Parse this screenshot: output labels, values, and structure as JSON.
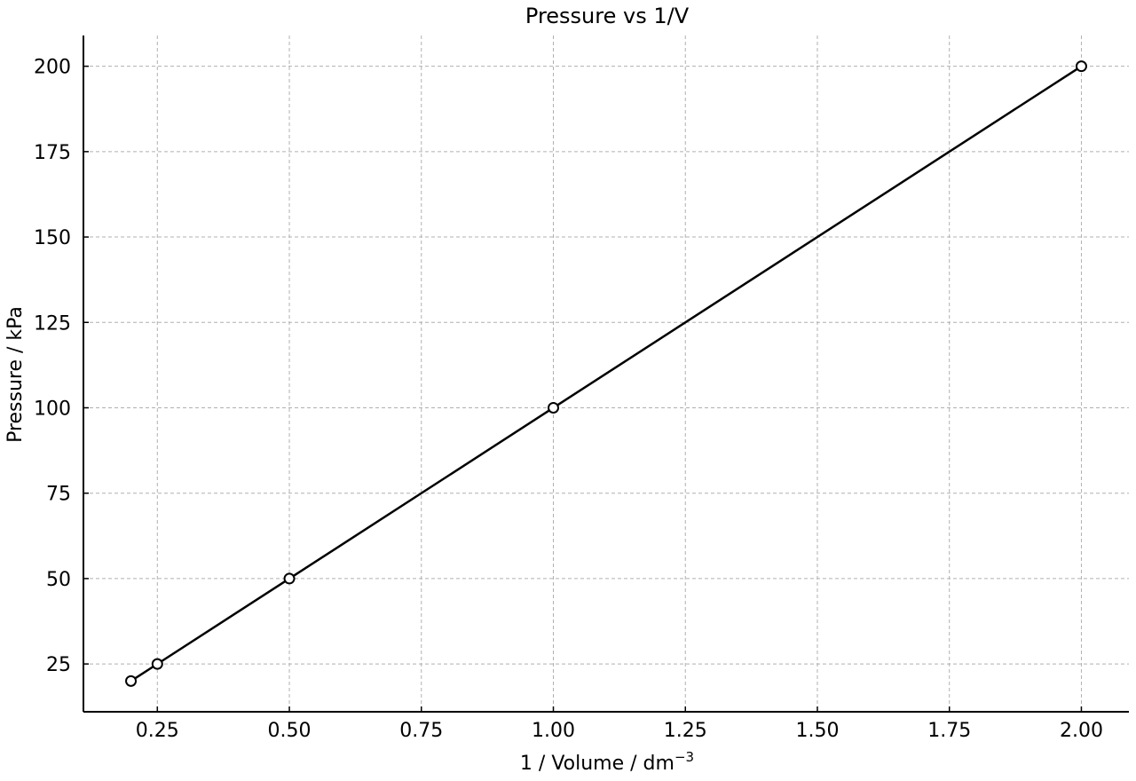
{
  "chart_data": {
    "type": "line",
    "title": "Pressure vs 1/V",
    "xlabel": "1 / Volume / dm",
    "xlabel_superscript": "−3",
    "ylabel": "Pressure / kPa",
    "xlim": [
      0.11,
      2.09
    ],
    "ylim": [
      11,
      209
    ],
    "x_ticks": [
      "0.25",
      "0.50",
      "0.75",
      "1.00",
      "1.25",
      "1.50",
      "1.75",
      "2.00"
    ],
    "y_ticks": [
      "25",
      "50",
      "75",
      "100",
      "125",
      "150",
      "175",
      "200"
    ],
    "grid": true,
    "series": [
      {
        "x": [
          0.2,
          0.25,
          0.5,
          1.0,
          2.0
        ],
        "y": [
          20,
          25,
          50,
          100,
          200
        ],
        "color": "#000000",
        "marker": "hollow-circle"
      }
    ]
  }
}
